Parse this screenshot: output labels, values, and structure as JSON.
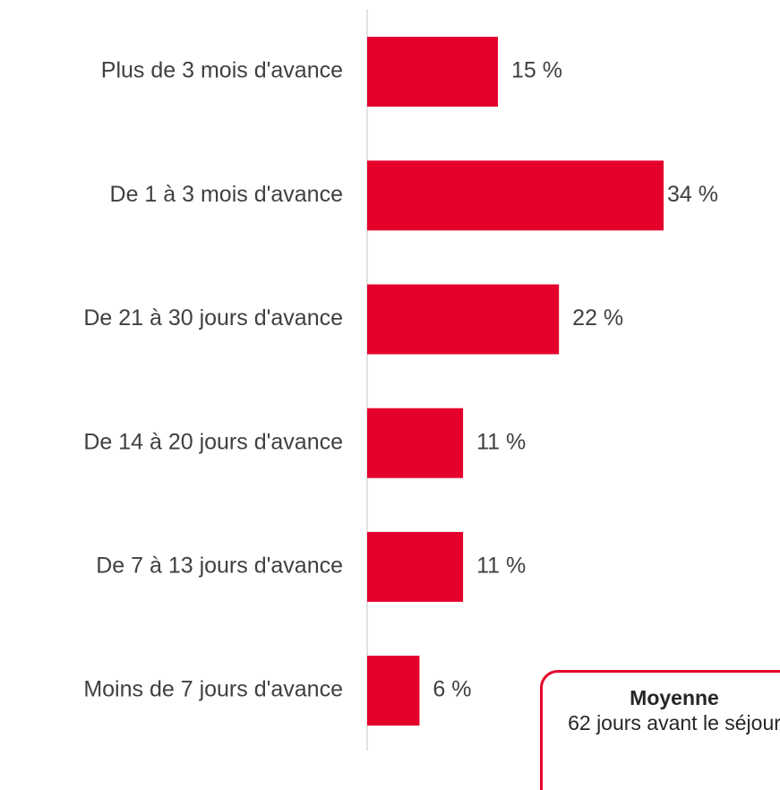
{
  "chart_data": {
    "type": "bar",
    "orientation": "horizontal",
    "categories": [
      "Plus de 3 mois d'avance",
      "De 1 à 3 mois d'avance",
      "De 21 à 30 jours d'avance",
      "De 14 à 20 jours d'avance",
      "De 7 à 13 jours d'avance",
      "Moins de 7 jours d'avance"
    ],
    "values": [
      15,
      34,
      22,
      11,
      11,
      6
    ],
    "value_labels": [
      "15 %",
      "34 %",
      "22 %",
      "11 %",
      "11 %",
      "6 %"
    ],
    "color": "#e4002b",
    "annotation": {
      "title": "Moyenne",
      "text": "62 jours avant le séjour"
    }
  }
}
